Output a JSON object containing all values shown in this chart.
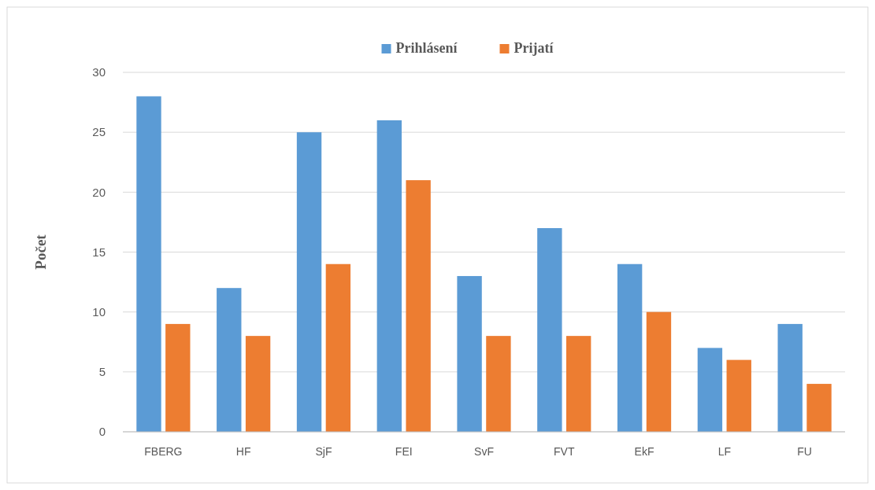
{
  "chart_data": {
    "type": "bar",
    "ylabel": "Počet",
    "categories": [
      "FBERG",
      "HF",
      "SjF",
      "FEI",
      "SvF",
      "FVT",
      "EkF",
      "LF",
      "FU"
    ],
    "series": [
      {
        "name": "Prihlásení",
        "color": "#5b9bd5",
        "values": [
          28,
          12,
          25,
          26,
          13,
          17,
          14,
          7,
          9
        ]
      },
      {
        "name": "Prijatí",
        "color": "#ed7d31",
        "values": [
          9,
          8,
          14,
          21,
          8,
          8,
          10,
          6,
          4
        ]
      }
    ],
    "ylim": [
      0,
      30
    ],
    "yticks": [
      0,
      5,
      10,
      15,
      20,
      25,
      30
    ],
    "grid": "y",
    "legend": "top"
  }
}
